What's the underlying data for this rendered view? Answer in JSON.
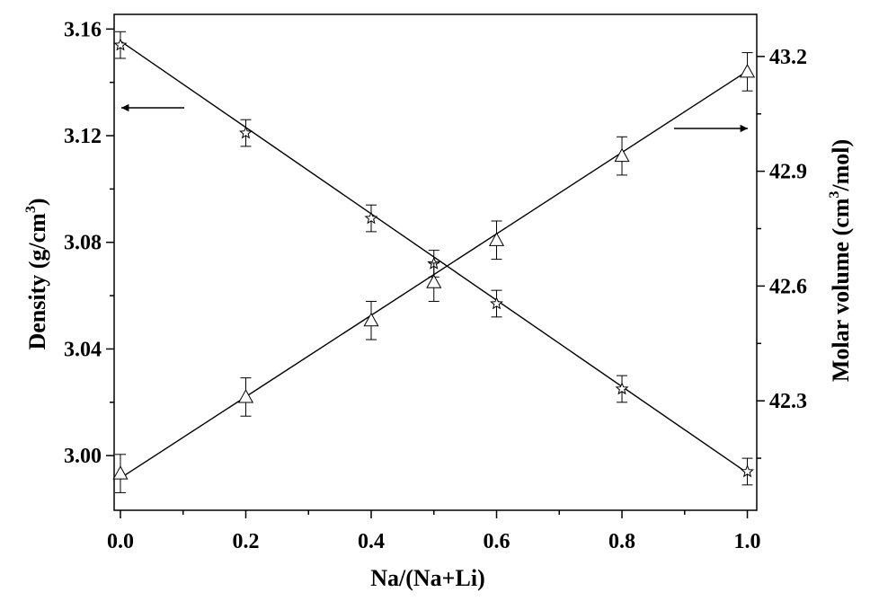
{
  "chart_data": {
    "type": "scatter",
    "xlabel": "Na/(Na+Li)",
    "ylabel": "Density (g/cm",
    "ylabel_sup": "3",
    "ylabel_end": ")",
    "y2label": "Molar volume  (cm",
    "y2label_sup": "3",
    "y2label_end": "/mol)",
    "xlim": [
      -0.01,
      1.015
    ],
    "ylim": [
      2.9795,
      3.1655
    ],
    "y2lim": [
      42.014,
      43.31
    ],
    "xticks": [
      0.0,
      0.2,
      0.4,
      0.6,
      0.8,
      1.0
    ],
    "xtick_labels": [
      "0.0",
      "0.2",
      "0.4",
      "0.6",
      "0.8",
      "1.0"
    ],
    "yticks": [
      3.0,
      3.04,
      3.08,
      3.12,
      3.16
    ],
    "ytick_labels": [
      "3.00",
      "3.04",
      "3.08",
      "3.12",
      "3.16"
    ],
    "y2ticks": [
      42.3,
      42.6,
      42.9,
      43.2
    ],
    "y2tick_labels": [
      "42.3",
      "42.6",
      "42.9",
      "43.2"
    ],
    "series": [
      {
        "axis": "left",
        "marker": "star",
        "x": [
          0.0,
          0.2,
          0.4,
          0.5,
          0.6,
          0.8,
          1.0
        ],
        "y": [
          3.154,
          3.121,
          3.089,
          3.072,
          3.057,
          3.025,
          2.994
        ],
        "err": [
          0.005,
          0.005,
          0.005,
          0.005,
          0.005,
          0.005,
          0.005
        ],
        "fit": [
          [
            0.0,
            3.1555
          ],
          [
            1.0,
            2.9935
          ]
        ]
      },
      {
        "axis": "right",
        "marker": "triangle",
        "x": [
          0.0,
          0.2,
          0.4,
          0.5,
          0.6,
          0.8,
          1.0
        ],
        "y": [
          42.11,
          42.31,
          42.51,
          42.61,
          42.72,
          42.94,
          43.16
        ],
        "err": [
          0.05,
          0.05,
          0.05,
          0.05,
          0.05,
          0.05,
          0.05
        ],
        "fit": [
          [
            0.0,
            42.098
          ],
          [
            1.0,
            43.162
          ]
        ]
      }
    ],
    "annotations": [
      {
        "type": "arrow",
        "direction": "left",
        "points_to": "left-axis"
      },
      {
        "type": "arrow",
        "direction": "right",
        "points_to": "right-axis"
      }
    ],
    "grid": false,
    "legend": "none"
  }
}
